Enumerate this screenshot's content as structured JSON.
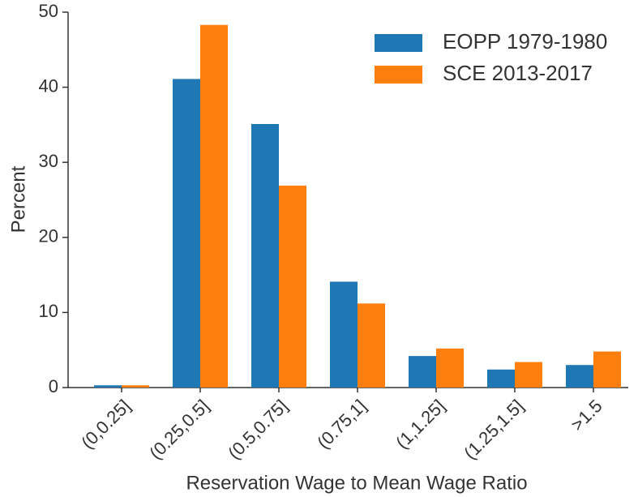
{
  "chart_data": {
    "type": "bar",
    "xlabel": "Reservation Wage to Mean Wage Ratio",
    "ylabel": "Percent",
    "categories": [
      "(0,0.25]",
      "(0.25,0.5]",
      "(0.5,0.75]",
      "(0.75,1]",
      "(1,1.25]",
      "(1.25,1.5]",
      ">1.5"
    ],
    "series": [
      {
        "name": "EOPP 1979-1980",
        "color": "#1f77b4",
        "values": [
          0.3,
          41.1,
          35.1,
          14.1,
          4.2,
          2.4,
          3.0
        ]
      },
      {
        "name": "SCE 2013-2017",
        "color": "#ff7f0e",
        "values": [
          0.3,
          48.3,
          26.9,
          11.2,
          5.2,
          3.4,
          4.8
        ]
      }
    ],
    "ylim": [
      0,
      50
    ],
    "yticks": [
      0,
      10,
      20,
      30,
      40,
      50
    ],
    "legend": "upper right"
  }
}
